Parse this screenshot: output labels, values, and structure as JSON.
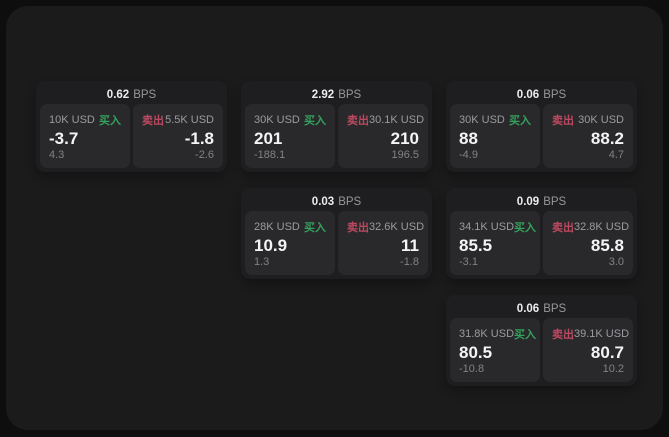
{
  "labels": {
    "buy": "买入",
    "sell": "卖出",
    "bps": "BPS"
  },
  "colors": {
    "page_bg": "#0e0e0f",
    "window_bg": "#1b1b1c",
    "card_bg": "#1e1e20",
    "panel_bg": "#29292c",
    "buy_green": "#35a05b",
    "sell_red": "#bb4960",
    "value_white": "#f4f4f5",
    "label_gray": "#9b9b9f",
    "muted_gray": "#828286"
  },
  "cards": [
    {
      "bps": "0.62",
      "buy": {
        "notional": "10K USD",
        "price": "-3.7",
        "delta": "4.3"
      },
      "sell": {
        "notional": "5.5K USD",
        "price": "-1.8",
        "delta": "-2.6"
      }
    },
    {
      "bps": "2.92",
      "buy": {
        "notional": "30K USD",
        "price": "201",
        "delta": "-188.1"
      },
      "sell": {
        "notional": "30.1K USD",
        "price": "210",
        "delta": "196.5"
      }
    },
    {
      "bps": "0.06",
      "buy": {
        "notional": "30K USD",
        "price": "88",
        "delta": "-4.9"
      },
      "sell": {
        "notional": "30K USD",
        "price": "88.2",
        "delta": "4.7"
      }
    },
    {
      "bps": "0.03",
      "buy": {
        "notional": "28K USD",
        "price": "10.9",
        "delta": "1.3"
      },
      "sell": {
        "notional": "32.6K USD",
        "price": "11",
        "delta": "-1.8"
      }
    },
    {
      "bps": "0.09",
      "buy": {
        "notional": "34.1K USD",
        "price": "85.5",
        "delta": "-3.1"
      },
      "sell": {
        "notional": "32.8K USD",
        "price": "85.8",
        "delta": "3.0"
      }
    },
    {
      "bps": "0.06",
      "buy": {
        "notional": "31.8K USD",
        "price": "80.5",
        "delta": "-10.8"
      },
      "sell": {
        "notional": "39.1K USD",
        "price": "80.7",
        "delta": "10.2"
      }
    }
  ]
}
